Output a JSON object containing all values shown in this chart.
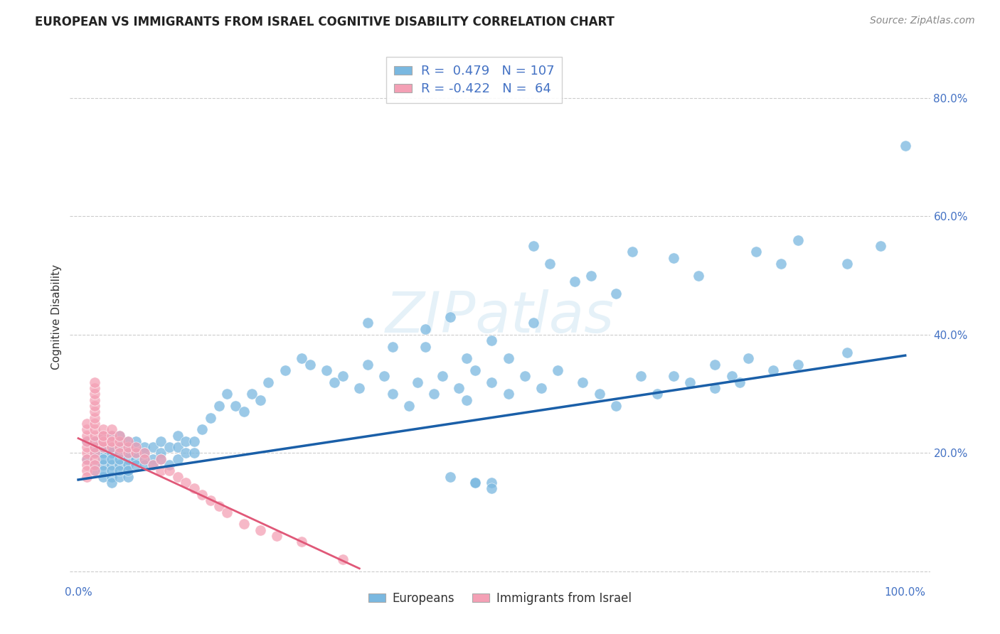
{
  "title": "EUROPEAN VS IMMIGRANTS FROM ISRAEL COGNITIVE DISABILITY CORRELATION CHART",
  "source": "Source: ZipAtlas.com",
  "ylabel": "Cognitive Disability",
  "xlim": [
    -0.01,
    1.03
  ],
  "ylim": [
    -0.02,
    0.88
  ],
  "xticks": [
    0.0,
    0.2,
    0.4,
    0.6,
    0.8,
    1.0
  ],
  "yticks": [
    0.0,
    0.2,
    0.4,
    0.6,
    0.8
  ],
  "xtick_labels": [
    "0.0%",
    "",
    "",
    "",
    "",
    "100.0%"
  ],
  "ytick_labels_right": [
    "",
    "20.0%",
    "40.0%",
    "60.0%",
    "80.0%"
  ],
  "background_color": "#ffffff",
  "grid_color": "#cccccc",
  "blue_color": "#7ab8e0",
  "pink_color": "#f4a0b5",
  "blue_line_color": "#1a5fa8",
  "pink_line_color": "#e05878",
  "legend_R1": "0.479",
  "legend_N1": "107",
  "legend_R2": "-0.422",
  "legend_N2": "64",
  "label1": "Europeans",
  "label2": "Immigrants from Israel",
  "title_fontsize": 12,
  "axis_label_fontsize": 11,
  "tick_fontsize": 11,
  "source_fontsize": 10,
  "blue_scatter_x": [
    0.01,
    0.01,
    0.02,
    0.02,
    0.02,
    0.02,
    0.02,
    0.03,
    0.03,
    0.03,
    0.03,
    0.03,
    0.03,
    0.03,
    0.03,
    0.04,
    0.04,
    0.04,
    0.04,
    0.04,
    0.04,
    0.04,
    0.04,
    0.04,
    0.05,
    0.05,
    0.05,
    0.05,
    0.05,
    0.05,
    0.05,
    0.05,
    0.06,
    0.06,
    0.06,
    0.06,
    0.06,
    0.06,
    0.06,
    0.07,
    0.07,
    0.07,
    0.07,
    0.07,
    0.08,
    0.08,
    0.08,
    0.08,
    0.09,
    0.09,
    0.09,
    0.1,
    0.1,
    0.1,
    0.11,
    0.11,
    0.12,
    0.12,
    0.12,
    0.13,
    0.13,
    0.14,
    0.14,
    0.15,
    0.16,
    0.17,
    0.18,
    0.19,
    0.2,
    0.21,
    0.22,
    0.23,
    0.25,
    0.27,
    0.28,
    0.3,
    0.31,
    0.32,
    0.34,
    0.35,
    0.37,
    0.38,
    0.4,
    0.41,
    0.43,
    0.44,
    0.46,
    0.47,
    0.48,
    0.5,
    0.52,
    0.54,
    0.56,
    0.58,
    0.61,
    0.63,
    0.65,
    0.68,
    0.7,
    0.72,
    0.74,
    0.77,
    0.79,
    0.81,
    0.84,
    0.87,
    0.93
  ],
  "blue_scatter_y": [
    0.19,
    0.22,
    0.18,
    0.2,
    0.22,
    0.17,
    0.21,
    0.18,
    0.2,
    0.22,
    0.16,
    0.19,
    0.21,
    0.23,
    0.17,
    0.18,
    0.2,
    0.22,
    0.16,
    0.19,
    0.21,
    0.23,
    0.17,
    0.15,
    0.18,
    0.2,
    0.22,
    0.16,
    0.19,
    0.21,
    0.23,
    0.17,
    0.19,
    0.21,
    0.18,
    0.2,
    0.22,
    0.16,
    0.17,
    0.19,
    0.21,
    0.18,
    0.2,
    0.22,
    0.19,
    0.21,
    0.18,
    0.2,
    0.19,
    0.21,
    0.18,
    0.2,
    0.22,
    0.19,
    0.21,
    0.18,
    0.21,
    0.19,
    0.23,
    0.2,
    0.22,
    0.2,
    0.22,
    0.24,
    0.26,
    0.28,
    0.3,
    0.28,
    0.27,
    0.3,
    0.29,
    0.32,
    0.34,
    0.36,
    0.35,
    0.34,
    0.32,
    0.33,
    0.31,
    0.35,
    0.33,
    0.3,
    0.28,
    0.32,
    0.3,
    0.33,
    0.31,
    0.29,
    0.34,
    0.32,
    0.3,
    0.33,
    0.31,
    0.34,
    0.32,
    0.3,
    0.28,
    0.33,
    0.3,
    0.33,
    0.32,
    0.35,
    0.33,
    0.36,
    0.34,
    0.35,
    0.37
  ],
  "blue_scatter_extra_x": [
    0.35,
    0.38,
    0.42,
    0.45,
    0.47,
    0.5,
    0.52,
    0.55,
    0.48,
    0.5,
    0.55,
    0.57,
    0.6,
    0.62,
    0.65,
    0.67,
    0.72,
    0.75,
    0.77,
    0.8,
    0.82,
    0.85,
    0.87,
    0.93,
    0.97,
    1.0,
    0.48,
    0.5,
    0.45,
    0.42
  ],
  "blue_scatter_extra_y": [
    0.42,
    0.38,
    0.41,
    0.43,
    0.36,
    0.39,
    0.36,
    0.42,
    0.15,
    0.15,
    0.55,
    0.52,
    0.49,
    0.5,
    0.47,
    0.54,
    0.53,
    0.5,
    0.31,
    0.32,
    0.54,
    0.52,
    0.56,
    0.52,
    0.55,
    0.72,
    0.15,
    0.14,
    0.16,
    0.38
  ],
  "pink_scatter_x": [
    0.01,
    0.01,
    0.01,
    0.01,
    0.01,
    0.01,
    0.01,
    0.01,
    0.01,
    0.01,
    0.02,
    0.02,
    0.02,
    0.02,
    0.02,
    0.02,
    0.02,
    0.02,
    0.02,
    0.02,
    0.02,
    0.02,
    0.02,
    0.02,
    0.02,
    0.02,
    0.03,
    0.03,
    0.03,
    0.03,
    0.03,
    0.03,
    0.04,
    0.04,
    0.04,
    0.04,
    0.04,
    0.05,
    0.05,
    0.05,
    0.05,
    0.06,
    0.06,
    0.06,
    0.07,
    0.07,
    0.08,
    0.08,
    0.09,
    0.1,
    0.1,
    0.11,
    0.12,
    0.13,
    0.14,
    0.15,
    0.16,
    0.17,
    0.18,
    0.2,
    0.22,
    0.24,
    0.27,
    0.32
  ],
  "pink_scatter_y": [
    0.2,
    0.21,
    0.19,
    0.22,
    0.18,
    0.23,
    0.17,
    0.24,
    0.16,
    0.25,
    0.2,
    0.21,
    0.19,
    0.22,
    0.18,
    0.23,
    0.17,
    0.24,
    0.25,
    0.26,
    0.27,
    0.28,
    0.29,
    0.3,
    0.31,
    0.32,
    0.21,
    0.22,
    0.23,
    0.24,
    0.22,
    0.23,
    0.22,
    0.21,
    0.23,
    0.22,
    0.24,
    0.21,
    0.22,
    0.2,
    0.23,
    0.2,
    0.21,
    0.22,
    0.2,
    0.21,
    0.2,
    0.19,
    0.18,
    0.17,
    0.19,
    0.17,
    0.16,
    0.15,
    0.14,
    0.13,
    0.12,
    0.11,
    0.1,
    0.08,
    0.07,
    0.06,
    0.05,
    0.02
  ],
  "blue_line_x": [
    0.0,
    1.0
  ],
  "blue_line_y": [
    0.155,
    0.365
  ],
  "pink_line_x": [
    0.0,
    0.34
  ],
  "pink_line_y": [
    0.225,
    0.005
  ]
}
